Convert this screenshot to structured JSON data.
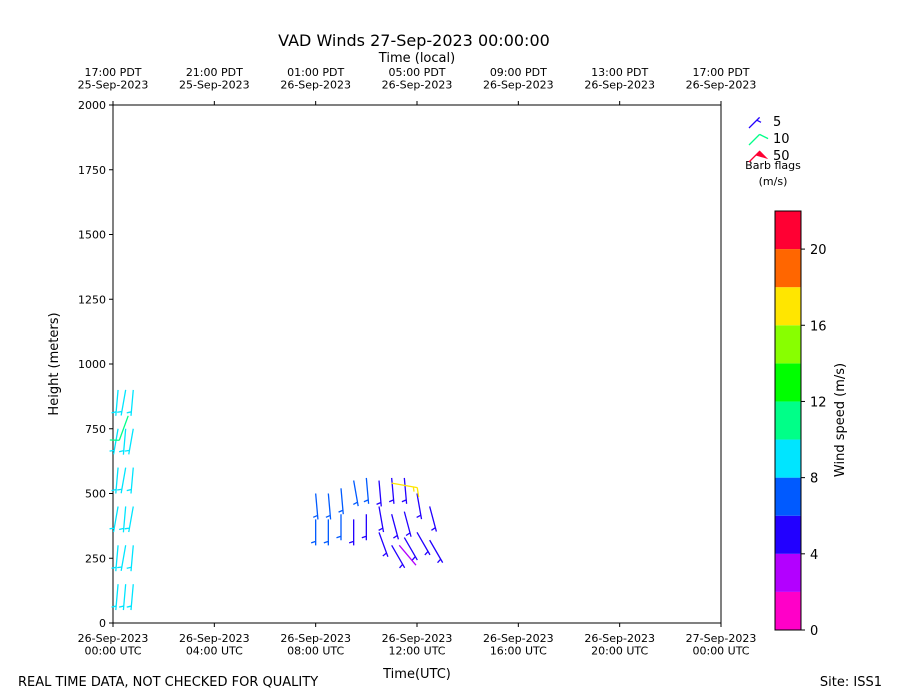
{
  "chart_data": {
    "type": "barbs",
    "title": "VAD Winds 27-Sep-2023 00:00:00",
    "xlabel": "Time(UTC)",
    "x2label": "Time (local)",
    "ylabel": "Height (meters)",
    "footer_left": "REAL TIME DATA, NOT CHECKED FOR QUALITY",
    "footer_right": "Site: ISS1",
    "xlim": [
      0,
      24
    ],
    "xticks": [
      {
        "value": 0,
        "label": "26-Sep-2023\n00:00 UTC"
      },
      {
        "value": 4,
        "label": "26-Sep-2023\n04:00 UTC"
      },
      {
        "value": 8,
        "label": "26-Sep-2023\n08:00 UTC"
      },
      {
        "value": 12,
        "label": "26-Sep-2023\n12:00 UTC"
      },
      {
        "value": 16,
        "label": "26-Sep-2023\n16:00 UTC"
      },
      {
        "value": 20,
        "label": "26-Sep-2023\n20:00 UTC"
      },
      {
        "value": 24,
        "label": "27-Sep-2023\n00:00 UTC"
      }
    ],
    "x2ticks": [
      {
        "value": 0,
        "label": "17:00 PDT\n25-Sep-2023"
      },
      {
        "value": 4,
        "label": "21:00 PDT\n25-Sep-2023"
      },
      {
        "value": 8,
        "label": "01:00 PDT\n26-Sep-2023"
      },
      {
        "value": 12,
        "label": "05:00 PDT\n26-Sep-2023"
      },
      {
        "value": 16,
        "label": "09:00 PDT\n26-Sep-2023"
      },
      {
        "value": 20,
        "label": "13:00 PDT\n26-Sep-2023"
      },
      {
        "value": 24,
        "label": "17:00 PDT\n26-Sep-2023"
      }
    ],
    "ylim": [
      0,
      2000
    ],
    "yticks": [
      0,
      250,
      500,
      750,
      1000,
      1250,
      1500,
      1750,
      2000
    ],
    "x": [
      0.2,
      0.2,
      0.2,
      0.2,
      0.2,
      0.2,
      0.5,
      0.5,
      0.5,
      0.5,
      0.5,
      0.5,
      0.8,
      0.8,
      0.8,
      0.8,
      0.8,
      0.8,
      0.6,
      8.0,
      8.0,
      8.5,
      8.5,
      9.0,
      9.0,
      9.5,
      9.5,
      10.0,
      10.0,
      10.5,
      10.5,
      10.5,
      11.0,
      11.0,
      11.0,
      11.5,
      11.5,
      11.5,
      12.0,
      12.0,
      12.5,
      12.5,
      11.0,
      11.3
    ],
    "y": [
      150,
      300,
      450,
      600,
      750,
      900,
      150,
      300,
      450,
      600,
      750,
      900,
      150,
      300,
      450,
      600,
      750,
      900,
      800,
      400,
      500,
      400,
      500,
      420,
      520,
      400,
      550,
      420,
      560,
      350,
      450,
      550,
      300,
      420,
      560,
      330,
      430,
      560,
      350,
      500,
      320,
      450,
      540,
      300
    ],
    "speed": [
      9,
      9,
      9,
      9,
      9,
      9,
      9,
      9,
      9,
      9,
      9,
      9,
      9,
      9,
      9,
      9,
      9,
      9,
      10.5,
      6.5,
      6.5,
      6.5,
      7,
      6,
      6.5,
      5.5,
      6.5,
      5.5,
      6,
      5,
      5,
      5.5,
      5,
      5,
      5.5,
      5,
      5,
      5,
      5,
      5,
      5,
      5,
      16.5,
      3.5
    ],
    "direction": [
      185,
      185,
      190,
      185,
      190,
      185,
      185,
      190,
      185,
      190,
      185,
      190,
      185,
      185,
      190,
      185,
      190,
      185,
      200,
      180,
      175,
      180,
      175,
      180,
      175,
      180,
      170,
      180,
      175,
      160,
      170,
      175,
      150,
      165,
      175,
      150,
      165,
      175,
      150,
      170,
      150,
      165,
      100,
      140
    ],
    "barb_legend": {
      "title": "Barb flags",
      "units": "(m/s)",
      "items": [
        5,
        10,
        50
      ],
      "colors": [
        "#2200ff",
        "#00ff88",
        "#ff0033"
      ]
    },
    "colorbar": {
      "label": "Wind speed (m/s)",
      "bounds": [
        0,
        2,
        4,
        6,
        8,
        10,
        12,
        14,
        16,
        18,
        20,
        22
      ],
      "colors": [
        "#ff00c8",
        "#b300ff",
        "#2200ff",
        "#005aff",
        "#00e5ff",
        "#00ff88",
        "#00ff00",
        "#88ff00",
        "#ffe600",
        "#ff6600",
        "#ff0033"
      ],
      "ticks": [
        0,
        4,
        8,
        12,
        16,
        20
      ]
    }
  }
}
